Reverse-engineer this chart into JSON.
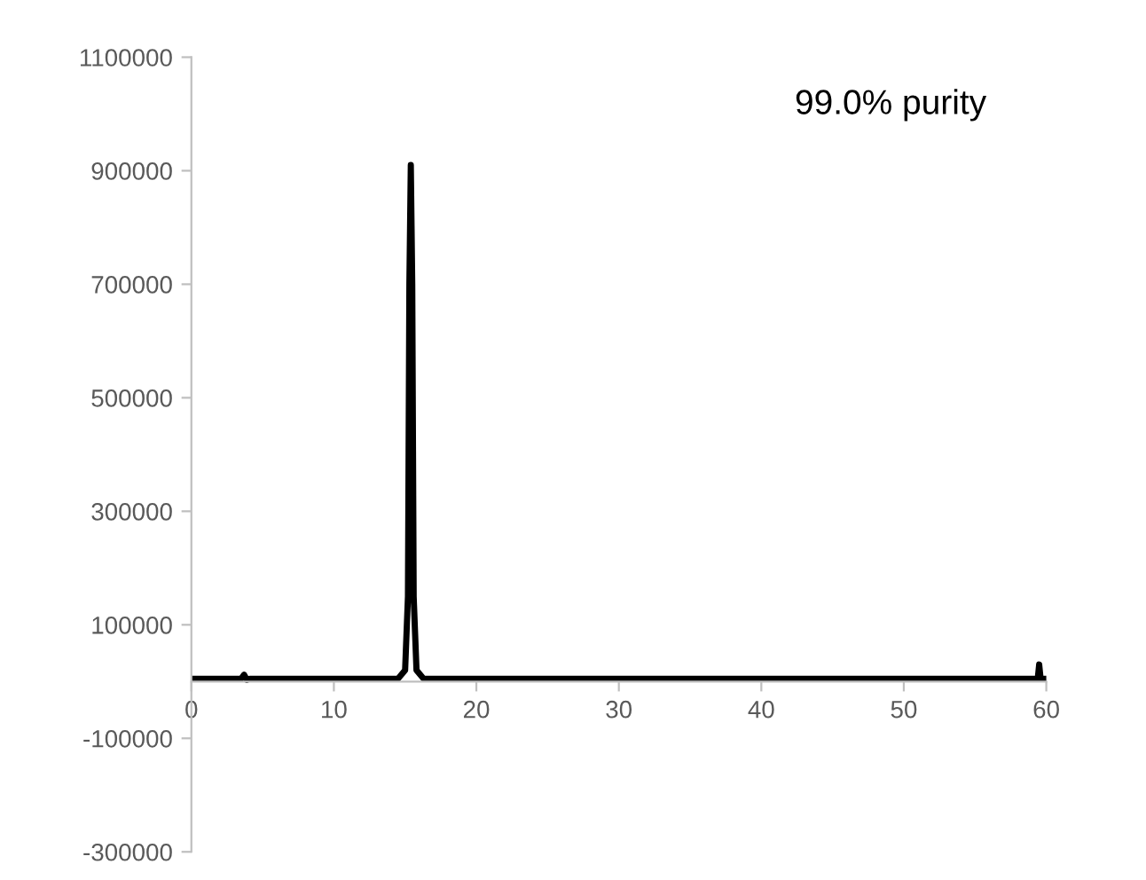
{
  "chart_data": {
    "type": "line",
    "series": [
      {
        "color": "#000000",
        "x": [
          0,
          3.5,
          3.7,
          3.9,
          4.1,
          9,
          14.5,
          15.0,
          15.2,
          15.3,
          15.4,
          15.5,
          15.6,
          15.8,
          16.3,
          30,
          45,
          59.4,
          59.5,
          59.6,
          60
        ],
        "values": [
          5000,
          5000,
          12000,
          3000,
          5000,
          5000,
          5000,
          20000,
          150000,
          700000,
          910000,
          700000,
          150000,
          20000,
          5000,
          5000,
          5000,
          5000,
          30000,
          5000,
          5000
        ]
      }
    ],
    "xlim": [
      0,
      60
    ],
    "xticks": [
      0,
      10,
      20,
      30,
      40,
      50,
      60
    ],
    "ylim": [
      -300000,
      1100000
    ],
    "yticks": [
      -300000,
      -100000,
      100000,
      300000,
      500000,
      700000,
      900000,
      1100000
    ],
    "annotations": [
      "99.0% purity"
    ],
    "grid": false,
    "legend": false
  }
}
